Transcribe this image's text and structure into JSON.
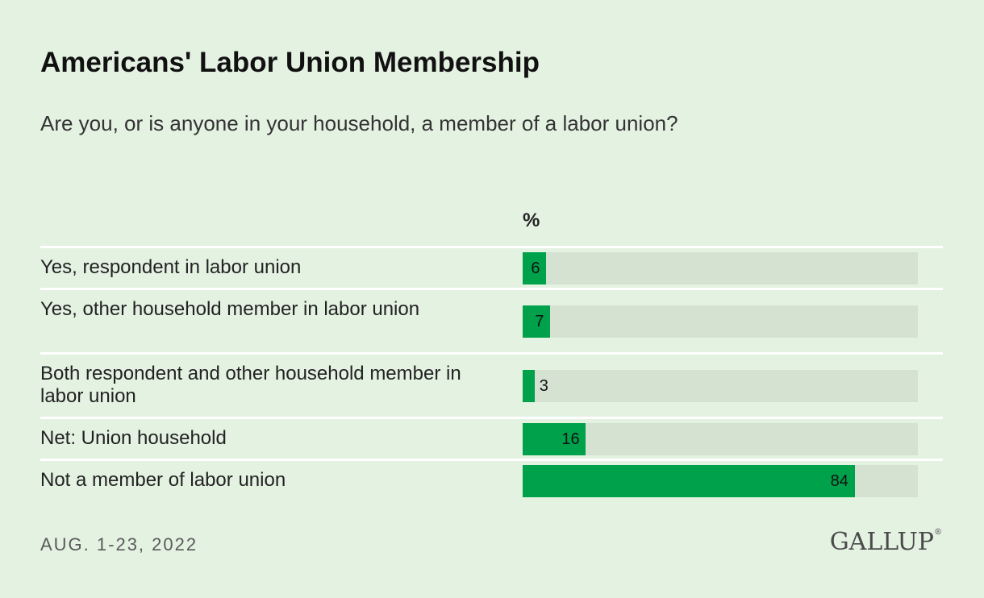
{
  "header": {
    "title": "Americans' Labor Union Membership",
    "subtitle": "Are you, or is anyone in your household, a member of a labor union?"
  },
  "chart_data": {
    "type": "bar",
    "orientation": "horizontal",
    "unit_label": "%",
    "xlim": [
      0,
      100
    ],
    "categories": [
      "Yes, respondent in labor union",
      "Yes, other household member in labor union",
      "Both respondent and other household member in labor union",
      "Net: Union household",
      "Not a member of labor union"
    ],
    "values": [
      6,
      7,
      3,
      16,
      84
    ],
    "value_labels": [
      "6",
      "7",
      "3",
      "16",
      "84"
    ],
    "bar_color": "#00a14b",
    "track_color": "#d5e1d1"
  },
  "footer": {
    "date": "AUG. 1-23, 2022",
    "logo_text": "GALLUP"
  }
}
